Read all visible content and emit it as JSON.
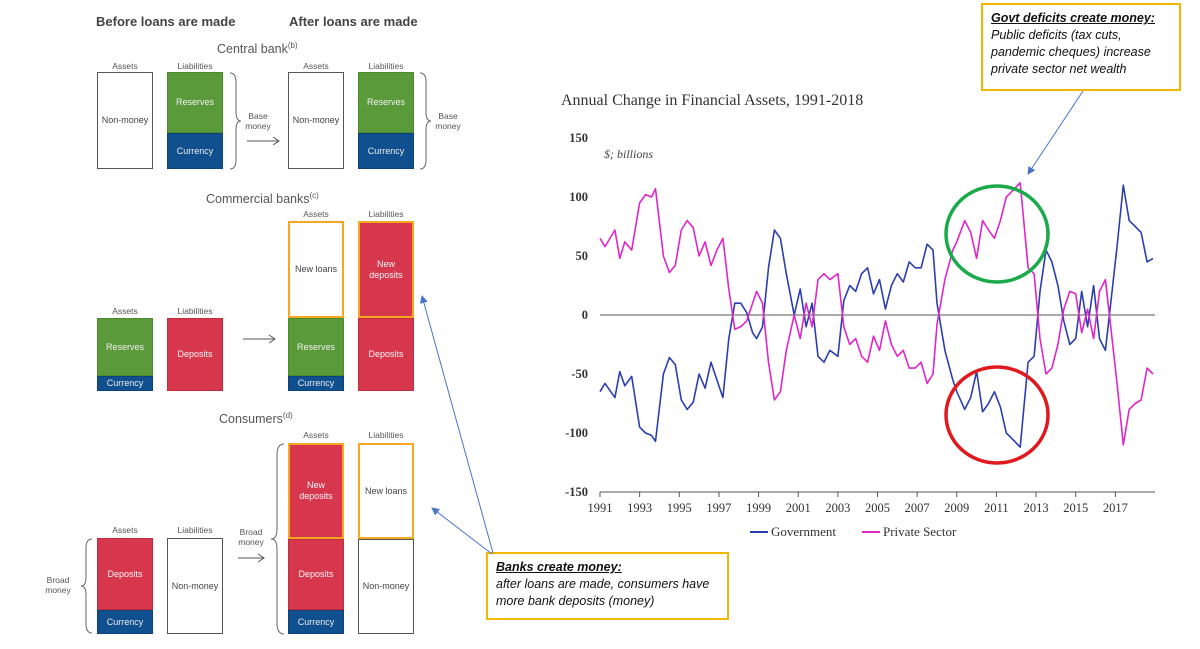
{
  "diagram": {
    "header_before": "Before loans are made",
    "header_after": "After loans are made",
    "central_bank": {
      "title": "Central bank",
      "sup": "(b)"
    },
    "commercial_banks": {
      "title": "Commercial banks",
      "sup": "(c)"
    },
    "consumers": {
      "title": "Consumers",
      "sup": "(d)"
    },
    "labels": {
      "assets": "Assets",
      "liabilities": "Liabilities",
      "non_money": "Non-money",
      "reserves": "Reserves",
      "currency": "Currency",
      "deposits": "Deposits",
      "new_loans": "New loans",
      "new_deposits": "New\ndeposits",
      "base_money": "Base\nmoney",
      "broad_money": "Broad\nmoney"
    },
    "colors": {
      "green": "#5a9a3a",
      "blue": "#11508e",
      "red": "#d6374d",
      "orange": "#f5a623"
    }
  },
  "callouts": {
    "govt": {
      "title": "Govt deficits create money:",
      "body": "Public deficits (tax cuts, pandemic cheques) increase private sector net wealth"
    },
    "banks": {
      "title": "Banks create money:",
      "body": "after loans are made, consumers have more bank deposits (money)"
    },
    "border_color": "#f2b705",
    "highlight_colors": {
      "top_circle": "#1aaa4a",
      "bottom_circle": "#e0191f"
    }
  },
  "chart_data": {
    "type": "line",
    "title": "Annual Change in Financial Assets, 1991-2018",
    "unit_label": "$; billions",
    "ylim": [
      -150,
      150
    ],
    "yticks": [
      150,
      100,
      50,
      0,
      -50,
      -100,
      -150
    ],
    "xlim": [
      1991,
      2019
    ],
    "xticks": [
      1991,
      1993,
      1995,
      1997,
      1999,
      2001,
      2003,
      2005,
      2007,
      2009,
      2011,
      2013,
      2015,
      2017
    ],
    "grid": false,
    "legend_position": "bottom",
    "series": [
      {
        "name": "Government",
        "color": "#2b3eb0",
        "x": [
          1991,
          1991.25,
          1991.75,
          1992,
          1992.25,
          1992.6,
          1993,
          1993.3,
          1993.6,
          1993.8,
          1994.2,
          1994.5,
          1994.8,
          1995.1,
          1995.4,
          1995.7,
          1996,
          1996.3,
          1996.6,
          1996.9,
          1997.2,
          1997.5,
          1997.8,
          1998.1,
          1998.4,
          1998.7,
          1998.9,
          1999.2,
          1999.5,
          1999.8,
          2000.1,
          2000.4,
          2000.8,
          2001.1,
          2001.4,
          2001.7,
          2002,
          2002.3,
          2002.6,
          2003,
          2003.3,
          2003.6,
          2003.9,
          2004.2,
          2004.5,
          2004.8,
          2005.1,
          2005.4,
          2005.7,
          2006,
          2006.3,
          2006.6,
          2006.9,
          2007.2,
          2007.5,
          2007.8,
          2008,
          2008.4,
          2008.8,
          2009,
          2009.4,
          2009.7,
          2010,
          2010.3,
          2010.6,
          2010.9,
          2011.2,
          2011.5,
          2011.8,
          2012.2,
          2012.6,
          2012.9,
          2013.2,
          2013.5,
          2013.8,
          2014.1,
          2014.4,
          2014.7,
          2015,
          2015.3,
          2015.6,
          2015.9,
          2016.2,
          2016.5,
          2016.8,
          2017.1,
          2017.4,
          2017.7,
          2018,
          2018.3,
          2018.6,
          2018.9
        ],
        "y": [
          -65,
          -58,
          -70,
          -48,
          -60,
          -52,
          -95,
          -100,
          -102,
          -107,
          -50,
          -36,
          -42,
          -72,
          -80,
          -74,
          -50,
          -62,
          -40,
          -55,
          -70,
          -20,
          10,
          10,
          2,
          -15,
          -20,
          -10,
          40,
          72,
          65,
          35,
          0,
          22,
          -10,
          10,
          -35,
          -40,
          -30,
          -35,
          12,
          25,
          20,
          35,
          40,
          18,
          30,
          5,
          25,
          35,
          28,
          45,
          40,
          40,
          60,
          55,
          10,
          -30,
          -55,
          -65,
          -80,
          -70,
          -48,
          -82,
          -75,
          -65,
          -78,
          -100,
          -105,
          -112,
          -40,
          -35,
          20,
          55,
          45,
          25,
          -5,
          -25,
          -20,
          20,
          -10,
          25,
          -20,
          -30,
          15,
          60,
          110,
          80,
          75,
          70,
          45,
          48
        ],
        "note": "values estimated from plot"
      },
      {
        "name": "Private Sector",
        "color": "#e026c8",
        "x": [
          1991,
          1991.25,
          1991.75,
          1992,
          1992.25,
          1992.6,
          1993,
          1993.3,
          1993.6,
          1993.8,
          1994.2,
          1994.5,
          1994.8,
          1995.1,
          1995.4,
          1995.7,
          1996,
          1996.3,
          1996.6,
          1996.9,
          1997.2,
          1997.5,
          1997.8,
          1998.1,
          1998.4,
          1998.7,
          1998.9,
          1999.2,
          1999.5,
          1999.8,
          2000.1,
          2000.4,
          2000.8,
          2001.1,
          2001.4,
          2001.7,
          2002,
          2002.3,
          2002.6,
          2003,
          2003.3,
          2003.6,
          2003.9,
          2004.2,
          2004.5,
          2004.8,
          2005.1,
          2005.4,
          2005.7,
          2006,
          2006.3,
          2006.6,
          2006.9,
          2007.2,
          2007.5,
          2007.8,
          2008,
          2008.4,
          2008.8,
          2009,
          2009.4,
          2009.7,
          2010,
          2010.3,
          2010.6,
          2010.9,
          2011.2,
          2011.5,
          2011.8,
          2012.2,
          2012.6,
          2012.9,
          2013.2,
          2013.5,
          2013.8,
          2014.1,
          2014.4,
          2014.7,
          2015,
          2015.3,
          2015.6,
          2015.9,
          2016.2,
          2016.5,
          2016.8,
          2017.1,
          2017.4,
          2017.7,
          2018,
          2018.3,
          2018.6,
          2018.9
        ],
        "y": [
          65,
          58,
          72,
          48,
          62,
          55,
          95,
          102,
          100,
          107,
          50,
          36,
          42,
          72,
          80,
          74,
          50,
          62,
          42,
          55,
          65,
          22,
          -12,
          -10,
          -5,
          10,
          20,
          10,
          -40,
          -72,
          -65,
          -30,
          0,
          -20,
          10,
          -10,
          30,
          35,
          30,
          35,
          -10,
          -25,
          -20,
          -35,
          -40,
          -18,
          -30,
          -5,
          -25,
          -35,
          -30,
          -45,
          -45,
          -40,
          -58,
          -50,
          -8,
          30,
          55,
          62,
          80,
          70,
          48,
          80,
          72,
          65,
          80,
          100,
          105,
          112,
          40,
          35,
          -20,
          -50,
          -45,
          -25,
          5,
          20,
          18,
          -15,
          5,
          -20,
          20,
          30,
          -15,
          -60,
          -110,
          -80,
          -75,
          -72,
          -45,
          -50
        ],
        "note": "values estimated from plot"
      }
    ]
  }
}
